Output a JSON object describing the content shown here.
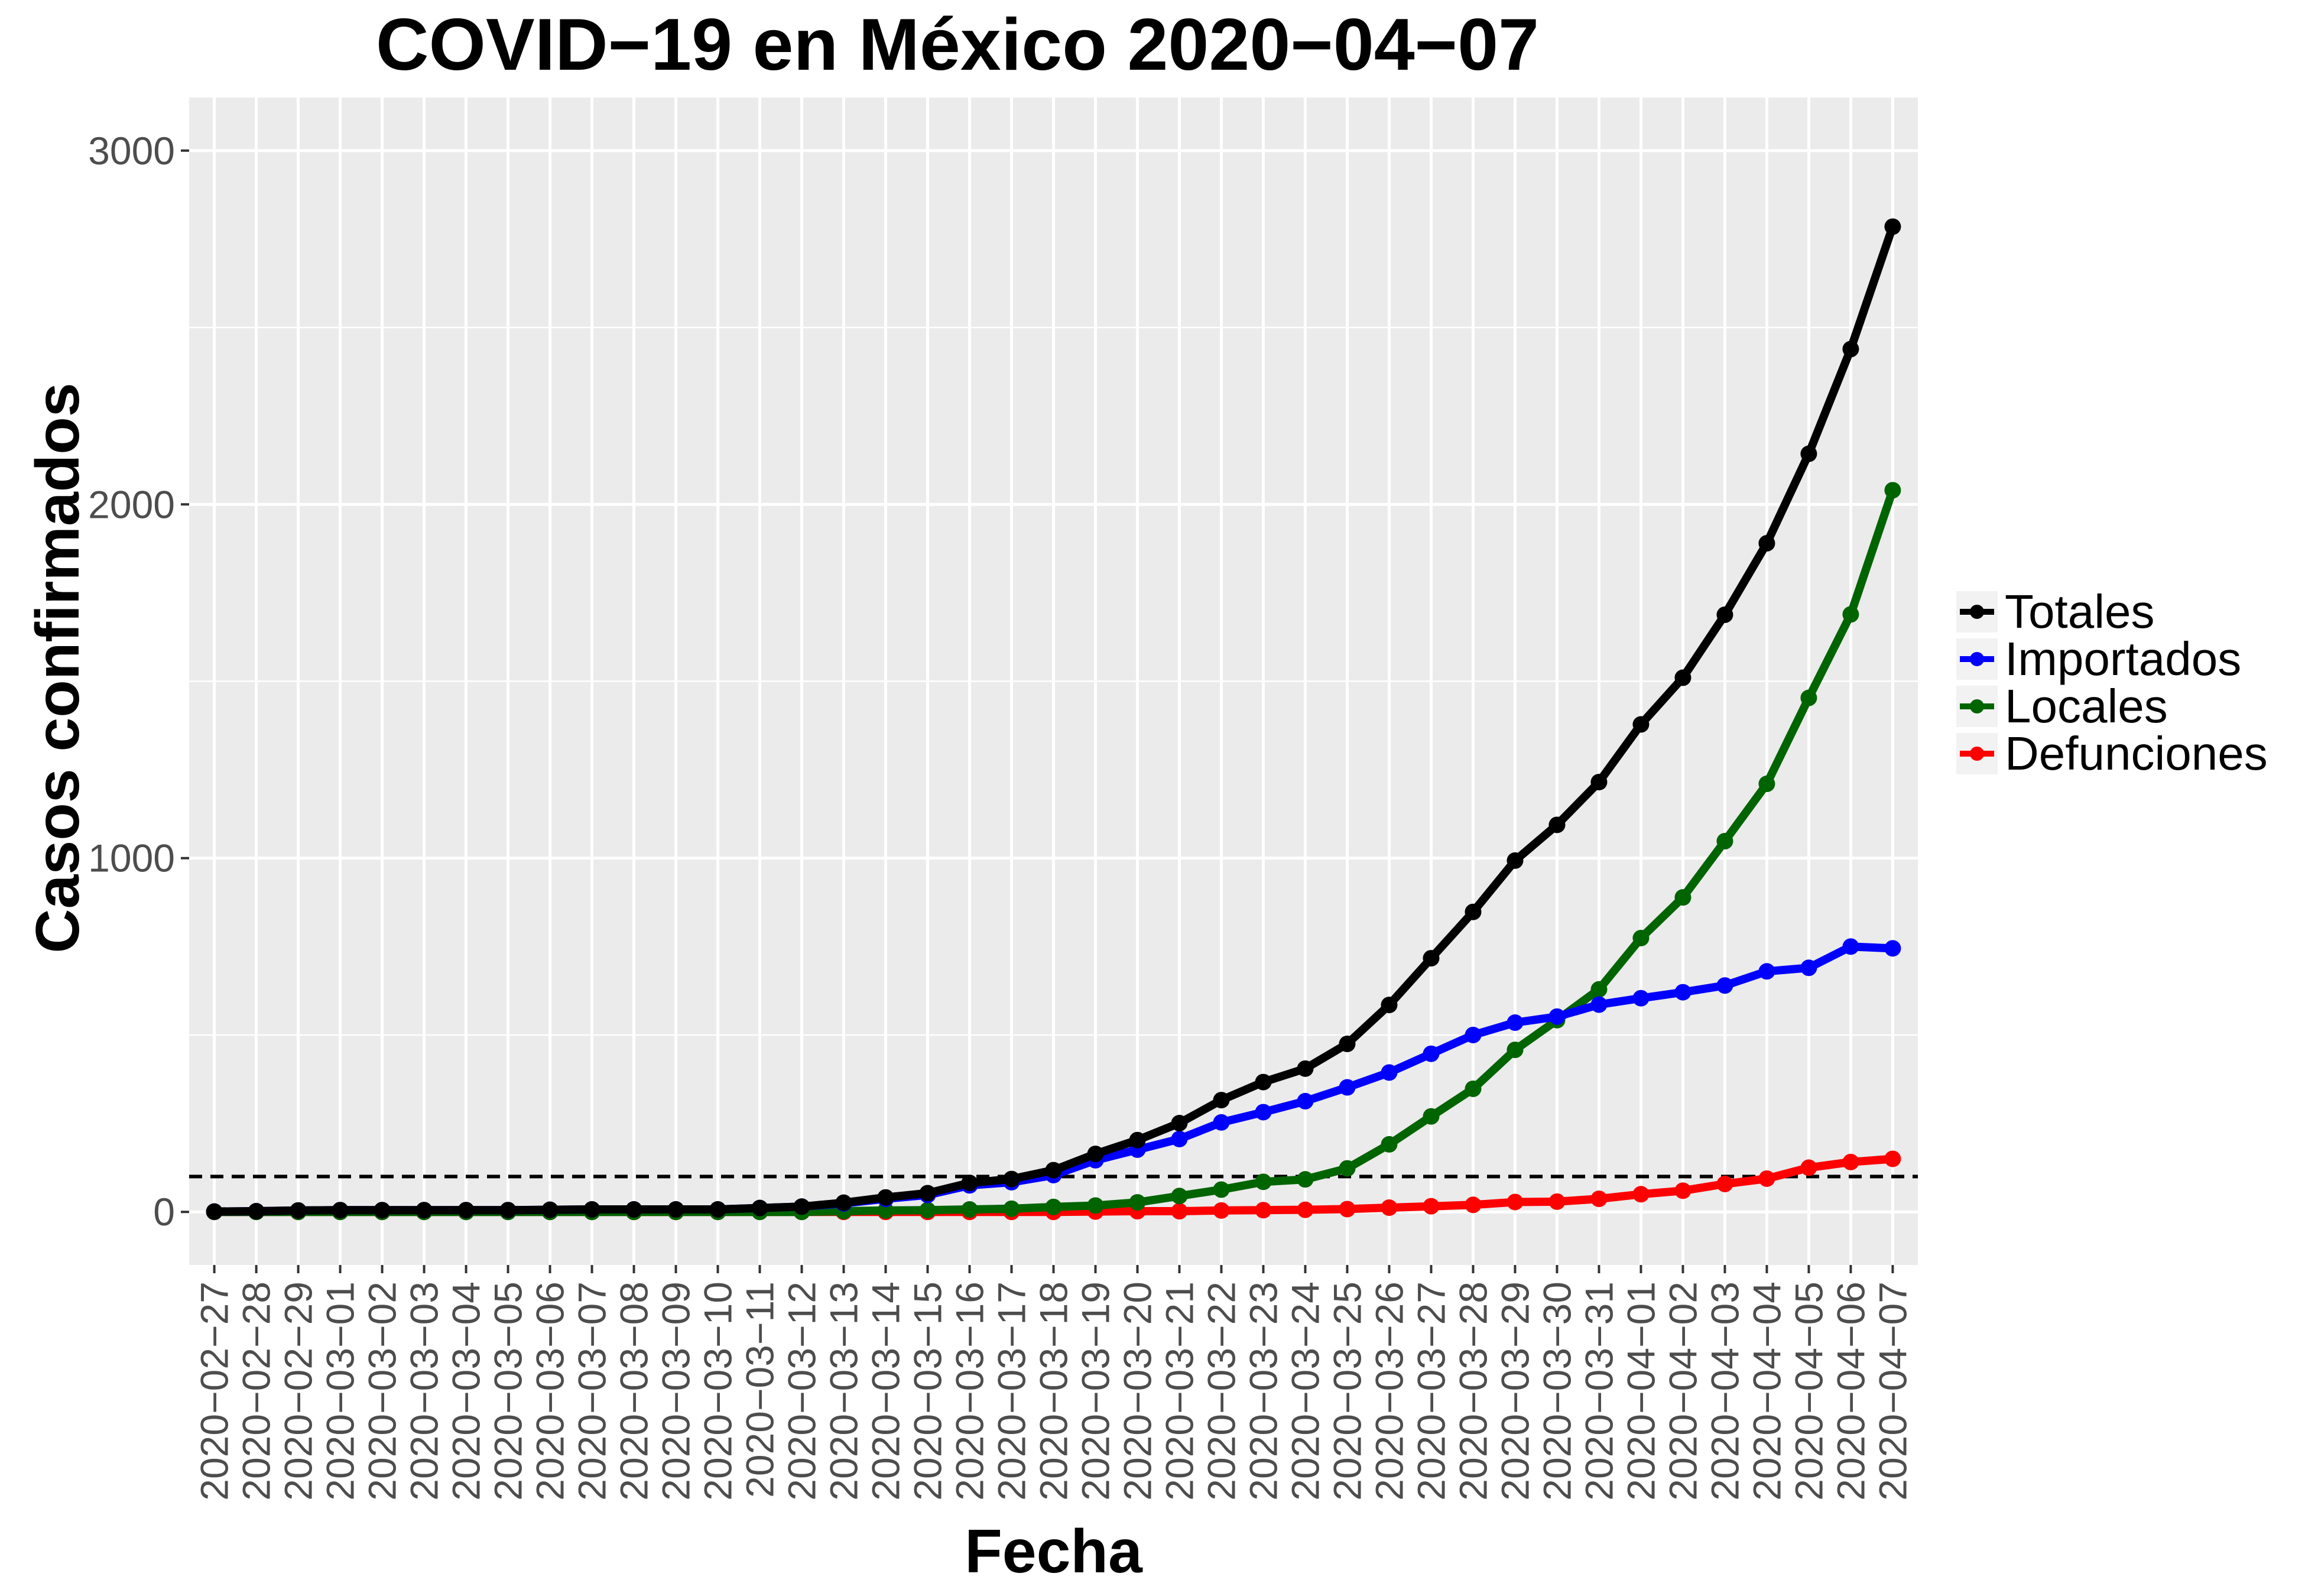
{
  "chart_data": {
    "type": "line",
    "title": "COVID−19 en México 2020−04−07",
    "xlabel": "Fecha",
    "ylabel": "Casos confirmados",
    "ylim": [
      -150,
      3150
    ],
    "yticks": [
      0,
      1000,
      2000,
      3000
    ],
    "grid": true,
    "legend_position": "right",
    "reference_line": {
      "y": 100,
      "style": "dashed",
      "color": "#000000"
    },
    "categories": [
      "2020−02−27",
      "2020−02−28",
      "2020−02−29",
      "2020−03−01",
      "2020−03−02",
      "2020−03−03",
      "2020−03−04",
      "2020−03−05",
      "2020−03−06",
      "2020−03−07",
      "2020−03−08",
      "2020−03−09",
      "2020−03−10",
      "2020−03−11",
      "2020−03−12",
      "2020−03−13",
      "2020−03−14",
      "2020−03−15",
      "2020−03−16",
      "2020−03−17",
      "2020−03−18",
      "2020−03−19",
      "2020−03−20",
      "2020−03−21",
      "2020−03−22",
      "2020−03−23",
      "2020−03−24",
      "2020−03−25",
      "2020−03−26",
      "2020−03−27",
      "2020−03−28",
      "2020−03−29",
      "2020−03−30",
      "2020−03−31",
      "2020−04−01",
      "2020−04−02",
      "2020−04−03",
      "2020−04−04",
      "2020−04−05",
      "2020−04−06",
      "2020−04−07"
    ],
    "series": [
      {
        "name": "Totales",
        "color": "#000000",
        "values": [
          1,
          2,
          4,
          5,
          5,
          5,
          5,
          5,
          6,
          7,
          7,
          7,
          7,
          11,
          15,
          26,
          41,
          53,
          82,
          93,
          118,
          164,
          203,
          251,
          316,
          367,
          405,
          475,
          585,
          717,
          848,
          993,
          1094,
          1215,
          1378,
          1510,
          1688,
          1890,
          2143,
          2439,
          2785
        ]
      },
      {
        "name": "Importados",
        "color": "#0000ff",
        "values": [
          1,
          2,
          4,
          5,
          5,
          5,
          5,
          5,
          6,
          7,
          7,
          7,
          7,
          11,
          15,
          24,
          37,
          48,
          75,
          84,
          104,
          146,
          176,
          206,
          253,
          282,
          313,
          352,
          394,
          447,
          500,
          535,
          552,
          586,
          604,
          621,
          640,
          680,
          690,
          750,
          745
        ]
      },
      {
        "name": "Locales",
        "color": "#006400",
        "values": [
          0,
          0,
          0,
          0,
          0,
          0,
          0,
          0,
          0,
          0,
          0,
          0,
          0,
          0,
          0,
          2,
          4,
          5,
          7,
          9,
          14,
          18,
          27,
          45,
          63,
          85,
          92,
          123,
          191,
          270,
          348,
          458,
          542,
          629,
          774,
          889,
          1048,
          1210,
          1453,
          1689,
          2040
        ]
      },
      {
        "name": "Defunciones",
        "color": "#ff0000",
        "values": [
          0,
          0,
          0,
          0,
          0,
          0,
          0,
          0,
          0,
          0,
          0,
          0,
          0,
          0,
          0,
          0,
          0,
          0,
          0,
          0,
          0,
          1,
          2,
          2,
          4,
          5,
          6,
          8,
          12,
          16,
          20,
          28,
          29,
          37,
          50,
          60,
          79,
          94,
          125,
          141,
          150
        ]
      }
    ]
  }
}
